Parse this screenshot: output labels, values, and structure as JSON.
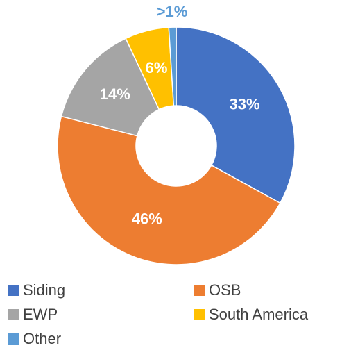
{
  "chart_data": {
    "type": "donut",
    "categories": [
      "Siding",
      "OSB",
      "EWP",
      "South America",
      "Other"
    ],
    "values": [
      33,
      46,
      14,
      6,
      1
    ],
    "value_labels": [
      "33%",
      "46%",
      "14%",
      "6%",
      ">1%"
    ],
    "colors": [
      "#4472c4",
      "#ed7d31",
      "#a5a5a5",
      "#ffc000",
      "#5b9bd5"
    ],
    "legend": "bottom"
  }
}
